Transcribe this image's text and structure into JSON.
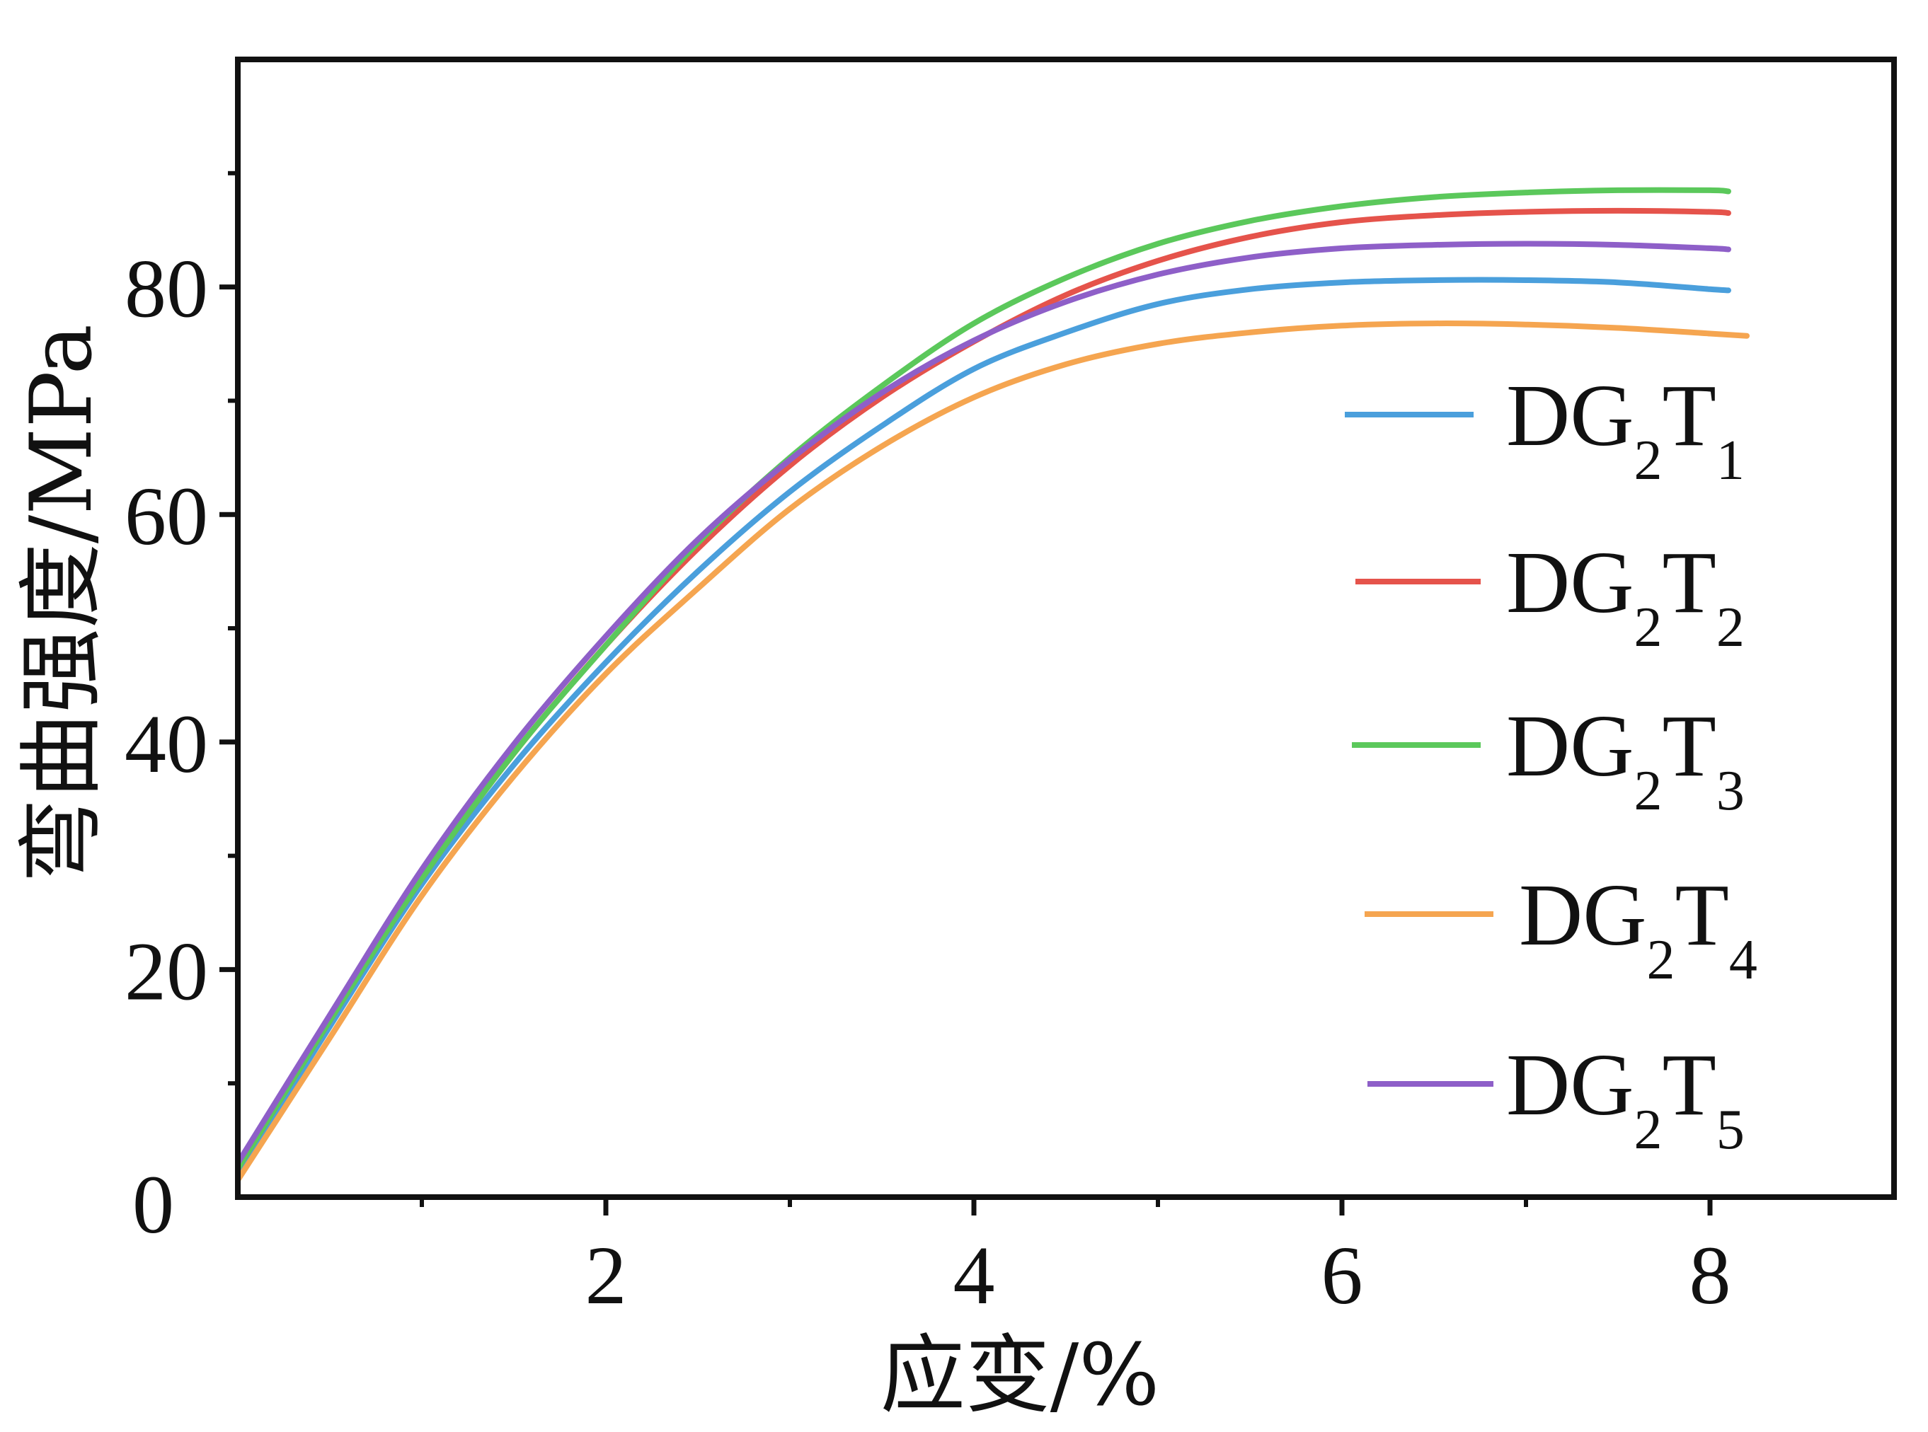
{
  "chart_data": {
    "type": "line",
    "title": "",
    "xlabel": "应变/%",
    "ylabel": "弯曲强度/MPa",
    "xlim": [
      0,
      9
    ],
    "ylim": [
      0,
      100
    ],
    "x_ticks": [
      2,
      4,
      6,
      8
    ],
    "y_ticks": [
      20,
      40,
      60,
      80
    ],
    "origin_label": "0",
    "grid": false,
    "legend_position": "right",
    "series": [
      {
        "name": "DG2T1",
        "label_main": "DG",
        "label_sub1": "2",
        "label_mid": "T",
        "label_sub2": "1",
        "color": "#4a9fdc",
        "x": [
          0,
          0.5,
          1,
          1.5,
          2,
          2.5,
          3,
          3.5,
          4,
          4.5,
          5,
          5.5,
          6,
          6.5,
          7,
          7.5,
          8,
          8.1
        ],
        "y": [
          2,
          15,
          27.5,
          38,
          47,
          55,
          62,
          67.8,
          72.8,
          76,
          78.5,
          79.8,
          80.4,
          80.6,
          80.6,
          80.4,
          79.8,
          79.7
        ]
      },
      {
        "name": "DG2T2",
        "label_main": "DG",
        "label_sub1": "2",
        "label_mid": "T",
        "label_sub2": "2",
        "color": "#e5534b",
        "x": [
          0,
          0.5,
          1,
          1.5,
          2,
          2.5,
          3,
          3.5,
          4,
          4.5,
          5,
          5.5,
          6,
          6.5,
          7,
          7.5,
          8,
          8.1
        ],
        "y": [
          2.5,
          15.5,
          28,
          39,
          48.5,
          57,
          64.3,
          70.3,
          75.2,
          79.3,
          82.3,
          84.4,
          85.7,
          86.3,
          86.6,
          86.7,
          86.6,
          86.5
        ]
      },
      {
        "name": "DG2T3",
        "label_main": "DG",
        "label_sub1": "2",
        "label_mid": "T",
        "label_sub2": "3",
        "color": "#5bc85b",
        "x": [
          0,
          0.5,
          1,
          1.5,
          2,
          2.5,
          3,
          3.5,
          4,
          4.5,
          5,
          5.5,
          6,
          6.5,
          7,
          7.5,
          8,
          8.1
        ],
        "y": [
          2.5,
          15.5,
          28,
          39,
          48.5,
          57.5,
          65,
          71.3,
          76.8,
          80.8,
          83.8,
          85.8,
          87.1,
          87.9,
          88.3,
          88.5,
          88.5,
          88.4
        ]
      },
      {
        "name": "DG2T4",
        "label_main": "DG",
        "label_sub1": "2",
        "label_mid": "T",
        "label_sub2": "4",
        "color": "#f5a550",
        "x": [
          0,
          0.5,
          1,
          1.5,
          2,
          2.5,
          3,
          3.5,
          4,
          4.5,
          5,
          5.5,
          6,
          6.5,
          7,
          7.5,
          8,
          8.2
        ],
        "y": [
          1.5,
          14,
          26.5,
          37,
          46,
          53.5,
          60.5,
          66,
          70.3,
          73.2,
          75,
          76,
          76.6,
          76.8,
          76.7,
          76.4,
          75.9,
          75.7
        ]
      },
      {
        "name": "DG2T5",
        "label_main": "DG",
        "label_sub1": "2",
        "label_mid": "T",
        "label_sub2": "5",
        "color": "#8e5fc8",
        "x": [
          0,
          0.5,
          1,
          1.5,
          2,
          2.5,
          3,
          3.5,
          4,
          4.5,
          5,
          5.5,
          6,
          6.5,
          7,
          7.5,
          8,
          8.1
        ],
        "y": [
          3,
          16,
          28.8,
          39.8,
          49.3,
          57.8,
          64.8,
          70.7,
          75.3,
          78.7,
          81.1,
          82.6,
          83.4,
          83.7,
          83.8,
          83.7,
          83.4,
          83.3
        ]
      }
    ]
  }
}
